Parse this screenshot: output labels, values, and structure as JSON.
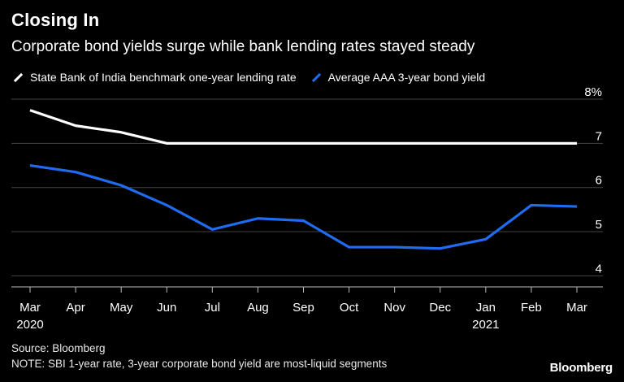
{
  "header": {
    "title": "Closing In",
    "subtitle": "Corporate bond yields surge while bank lending rates stayed steady"
  },
  "legend": {
    "items": [
      {
        "label": "State Bank of India benchmark one-year lending rate",
        "color": "#ffffff"
      },
      {
        "label": "Average AAA 3-year bond yield",
        "color": "#1f6cf0"
      }
    ]
  },
  "footer": {
    "source": "Source: Bloomberg",
    "note": "NOTE: SBI 1-year rate, 3-year corporate bond yield are most-liquid segments",
    "brand": "Bloomberg"
  },
  "chart_data": {
    "type": "line",
    "title": "Closing In",
    "subtitle": "Corporate bond yields surge while bank lending rates stayed steady",
    "xlabel": "",
    "ylabel": "",
    "categories": [
      "Mar",
      "Apr",
      "May",
      "Jun",
      "Jul",
      "Aug",
      "Sep",
      "Oct",
      "Nov",
      "Dec",
      "Jan",
      "Feb",
      "Mar"
    ],
    "year_labels": [
      {
        "index": 0,
        "label": "2020"
      },
      {
        "index": 10,
        "label": "2021"
      }
    ],
    "ylim": [
      3.75,
      8
    ],
    "yticks": [
      4,
      5,
      6,
      7,
      8
    ],
    "ytick_labels": [
      "4",
      "5",
      "6",
      "7",
      "8%"
    ],
    "grid": true,
    "legend_position": "top-left",
    "series": [
      {
        "name": "State Bank of India benchmark one-year lending rate",
        "color": "#ffffff",
        "x": [
          0,
          1,
          2,
          3,
          4,
          5,
          6,
          7,
          8,
          9,
          10,
          11,
          12
        ],
        "values": [
          7.75,
          7.4,
          7.25,
          7.0,
          7.0,
          7.0,
          7.0,
          7.0,
          7.0,
          7.0,
          7.0,
          7.0,
          7.0
        ]
      },
      {
        "name": "Average AAA 3-year bond yield",
        "color": "#1f6cf0",
        "x": [
          0,
          1,
          2,
          3,
          4,
          5,
          6,
          7,
          8,
          9,
          10,
          11,
          12
        ],
        "values": [
          6.5,
          6.35,
          6.05,
          5.6,
          5.05,
          5.3,
          5.25,
          4.65,
          4.65,
          4.62,
          4.83,
          5.6,
          5.57
        ]
      }
    ]
  }
}
